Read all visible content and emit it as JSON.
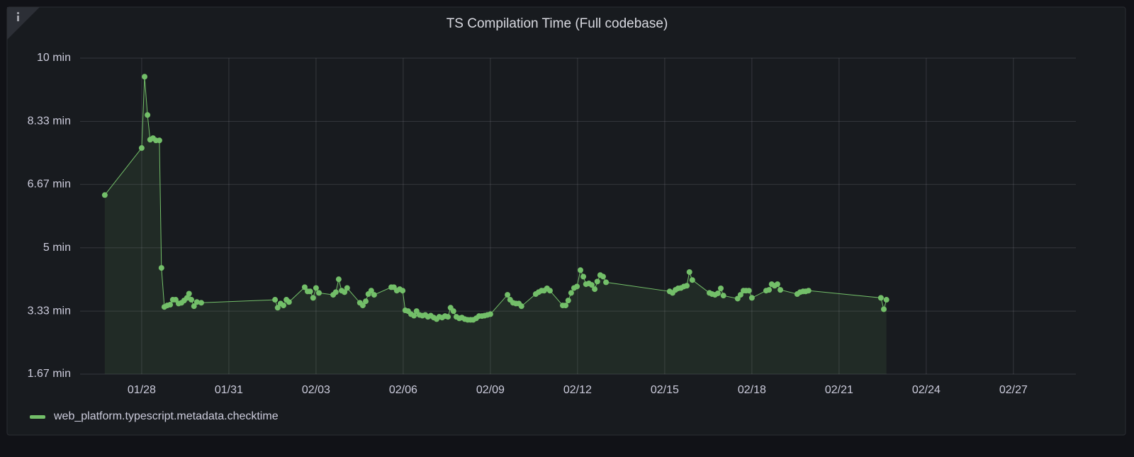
{
  "chart_data": {
    "type": "line",
    "title": "TS Compilation Time (Full codebase)",
    "x": [
      26.73,
      28.0,
      28.1,
      28.2,
      28.29,
      28.39,
      28.49,
      28.61,
      28.68,
      28.78,
      28.88,
      28.98,
      29.07,
      29.17,
      29.27,
      29.37,
      29.46,
      29.56,
      29.63,
      29.71,
      29.8,
      29.9,
      30.05,
      32.59,
      32.68,
      32.78,
      32.88,
      32.98,
      33.07,
      33.61,
      33.71,
      33.8,
      33.9,
      34.0,
      34.1,
      34.59,
      34.68,
      34.78,
      34.88,
      34.98,
      35.07,
      35.51,
      35.61,
      35.71,
      35.8,
      35.9,
      36.0,
      36.59,
      36.68,
      36.78,
      36.88,
      36.98,
      37.07,
      37.17,
      37.27,
      37.37,
      37.46,
      37.56,
      37.66,
      37.76,
      37.85,
      37.95,
      38.05,
      38.15,
      38.24,
      38.34,
      38.44,
      38.54,
      38.63,
      38.73,
      38.83,
      38.93,
      39.02,
      39.12,
      39.22,
      39.32,
      39.41,
      39.51,
      39.61,
      39.71,
      39.8,
      39.9,
      40.0,
      40.59,
      40.68,
      40.78,
      40.88,
      40.98,
      41.07,
      41.56,
      41.66,
      41.76,
      41.85,
      41.95,
      42.05,
      42.49,
      42.59,
      42.68,
      42.78,
      42.88,
      42.98,
      43.1,
      43.2,
      43.29,
      43.39,
      43.49,
      43.59,
      43.68,
      43.78,
      43.88,
      43.98,
      46.17,
      46.27,
      46.37,
      46.46,
      46.56,
      46.66,
      46.76,
      46.85,
      46.95,
      47.54,
      47.63,
      47.73,
      47.83,
      47.93,
      48.02,
      48.51,
      48.61,
      48.71,
      48.8,
      48.9,
      49.0,
      49.49,
      49.59,
      49.68,
      49.78,
      49.88,
      49.98,
      50.56,
      50.66,
      50.76,
      50.85,
      50.95,
      53.44,
      53.54,
      53.63
    ],
    "series": [
      {
        "name": "web_platform.typescript.metadata.checktime",
        "color": "#73bf69",
        "values": [
          6.39,
          7.63,
          9.51,
          8.5,
          7.85,
          7.89,
          7.83,
          7.83,
          4.47,
          3.44,
          3.48,
          3.5,
          3.63,
          3.63,
          3.53,
          3.55,
          3.61,
          3.68,
          3.79,
          3.63,
          3.46,
          3.57,
          3.55,
          3.63,
          3.42,
          3.53,
          3.48,
          3.63,
          3.57,
          3.96,
          3.85,
          3.85,
          3.68,
          3.94,
          3.81,
          3.76,
          3.83,
          4.17,
          3.87,
          3.83,
          3.94,
          3.55,
          3.48,
          3.59,
          3.78,
          3.87,
          3.76,
          3.96,
          3.96,
          3.87,
          3.91,
          3.87,
          3.35,
          3.33,
          3.25,
          3.21,
          3.33,
          3.23,
          3.21,
          3.23,
          3.18,
          3.21,
          3.16,
          3.12,
          3.18,
          3.16,
          3.2,
          3.18,
          3.42,
          3.33,
          3.18,
          3.14,
          3.16,
          3.12,
          3.1,
          3.1,
          3.1,
          3.14,
          3.2,
          3.2,
          3.21,
          3.23,
          3.25,
          3.76,
          3.63,
          3.55,
          3.53,
          3.53,
          3.46,
          3.78,
          3.83,
          3.87,
          3.87,
          3.93,
          3.87,
          3.48,
          3.48,
          3.61,
          3.81,
          3.94,
          3.98,
          4.41,
          4.24,
          4.04,
          4.06,
          4.02,
          3.91,
          4.11,
          4.28,
          4.24,
          4.09,
          3.85,
          3.81,
          3.89,
          3.93,
          3.94,
          3.98,
          4.0,
          4.36,
          4.15,
          3.81,
          3.78,
          3.76,
          3.8,
          3.93,
          3.74,
          3.66,
          3.76,
          3.87,
          3.87,
          3.87,
          3.68,
          3.87,
          3.89,
          4.04,
          4.0,
          4.04,
          3.89,
          3.78,
          3.83,
          3.85,
          3.85,
          3.87,
          3.68,
          3.38,
          3.63
        ]
      }
    ],
    "xlim": [
      25.88,
      60.15
    ],
    "xticks": [
      {
        "value": 28,
        "label": "01/28"
      },
      {
        "value": 31,
        "label": "01/31"
      },
      {
        "value": 34,
        "label": "02/03"
      },
      {
        "value": 37,
        "label": "02/06"
      },
      {
        "value": 40,
        "label": "02/09"
      },
      {
        "value": 43,
        "label": "02/12"
      },
      {
        "value": 46,
        "label": "02/15"
      },
      {
        "value": 49,
        "label": "02/18"
      },
      {
        "value": 52,
        "label": "02/21"
      },
      {
        "value": 55,
        "label": "02/24"
      },
      {
        "value": 58,
        "label": "02/27"
      }
    ],
    "ylim": [
      1.67,
      10
    ],
    "yticks": [
      {
        "value": 1.67,
        "label": "1.67 min"
      },
      {
        "value": 3.33,
        "label": "3.33 min"
      },
      {
        "value": 5,
        "label": "5 min"
      },
      {
        "value": 6.67,
        "label": "6.67 min"
      },
      {
        "value": 8.33,
        "label": "8.33 min"
      },
      {
        "value": 10,
        "label": "10 min"
      }
    ],
    "grid": true
  }
}
